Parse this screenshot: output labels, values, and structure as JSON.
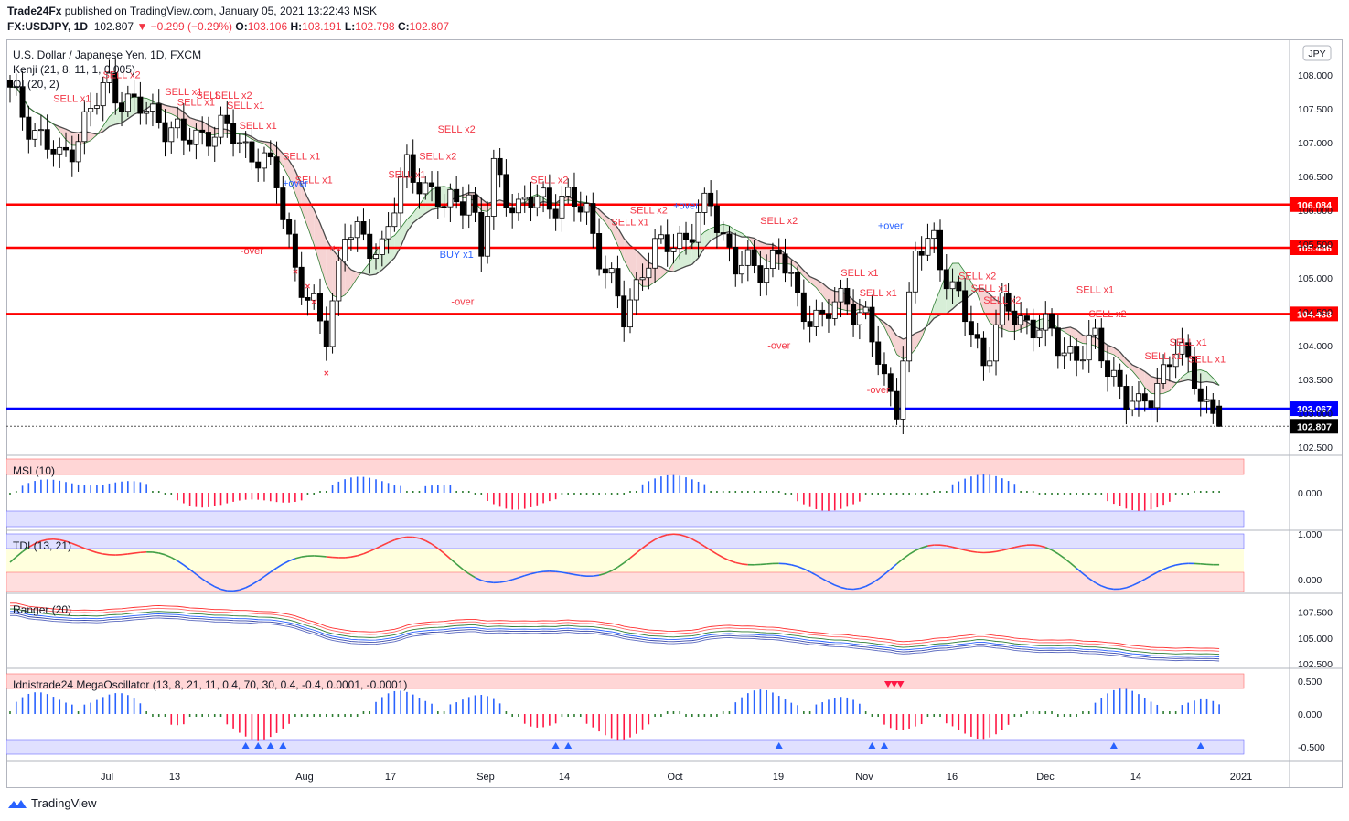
{
  "header": {
    "publisher": "Trade24Fx",
    "published_text": "published on TradingView.com, January 05, 2021 13:22:43 MSK",
    "symbol": "FX:USDJPY, 1D",
    "last": "102.807",
    "change": "▼ −0.299 (−0.29%)",
    "o_label": "O:",
    "o_value": "103.106",
    "h_label": "H:",
    "h_value": "103.191",
    "l_label": "L:",
    "l_value": "102.798",
    "c_label": "C:",
    "c_value": "102.807"
  },
  "legend": {
    "instrument": "U.S. Dollar / Japanese Yen, 1D, FXCM",
    "ind1": "Kenji (21, 8, 11, 1, 0.005)",
    "ind2": "OI (20, 2)"
  },
  "currency_badge": "JPY",
  "panes": {
    "msi": "MSI (10)",
    "tdi": "TDI (13, 21)",
    "ranger": "Ranger (20)",
    "mega": "Idnistrade24 MegaOscillator (13, 8, 21, 11, 0.4, 70, 30, 0.4, -0.4, 0.0001, -0.0001)"
  },
  "footer": {
    "brand": "TradingView"
  },
  "colors": {
    "up": "#ffffff",
    "down": "#000000",
    "red": "#ff0000",
    "blue": "#0000ff",
    "sig": "#f23645",
    "ma": "#4a4a4a"
  },
  "chart_data": {
    "type": "candlestick",
    "price_ticks": [
      "108.000",
      "107.500",
      "107.000",
      "106.500",
      "106.000",
      "105.500",
      "105.000",
      "104.500",
      "104.000",
      "103.500",
      "103.000",
      "102.500"
    ],
    "x_ticks": [
      "Jul",
      "13",
      "Aug",
      "17",
      "Sep",
      "14",
      "Oct",
      "19",
      "Nov",
      "16",
      "Dec",
      "14",
      "2021"
    ],
    "hlines": [
      {
        "value": 106.084,
        "label": "106.084",
        "color": "#ff0000"
      },
      {
        "value": 105.446,
        "label": "105.446",
        "color": "#ff0000"
      },
      {
        "value": 104.468,
        "label": "104.468",
        "color": "#ff0000"
      },
      {
        "value": 103.067,
        "label": "103.067",
        "color": "#0000ff"
      }
    ],
    "last_price": {
      "value": 102.807,
      "label": "102.807"
    },
    "annotations": [
      {
        "text": "SELL x2",
        "idx": 18,
        "price": 107.95
      },
      {
        "text": "SELL x1",
        "idx": 10,
        "price": 107.6
      },
      {
        "text": "SELL x1",
        "idx": 28,
        "price": 107.7
      },
      {
        "text": "SELL",
        "idx": 32,
        "price": 107.65
      },
      {
        "text": "SELL x2",
        "idx": 36,
        "price": 107.65
      },
      {
        "text": "SELL x1",
        "idx": 30,
        "price": 107.55
      },
      {
        "text": "SELL x1",
        "idx": 38,
        "price": 107.5
      },
      {
        "text": "SELL x1",
        "idx": 40,
        "price": 107.2
      },
      {
        "text": "SELL x1",
        "idx": 47,
        "price": 106.75
      },
      {
        "text": "SELL x1",
        "idx": 49,
        "price": 106.4
      },
      {
        "text": "SELL x1",
        "idx": 64,
        "price": 106.48
      },
      {
        "text": "SELL x2",
        "idx": 69,
        "price": 106.75
      },
      {
        "text": "SELL x2",
        "idx": 72,
        "price": 107.15
      },
      {
        "text": "SELL x2",
        "idx": 87,
        "price": 106.4
      },
      {
        "text": "SELL x2",
        "idx": 103,
        "price": 105.95
      },
      {
        "text": "SELL x1",
        "idx": 100,
        "price": 105.78
      },
      {
        "text": "SELL x2",
        "idx": 124,
        "price": 105.8
      },
      {
        "text": "SELL x1",
        "idx": 137,
        "price": 105.03
      },
      {
        "text": "SELL x1",
        "idx": 140,
        "price": 104.73
      },
      {
        "text": "SELL x2",
        "idx": 156,
        "price": 104.98
      },
      {
        "text": "SELL x1",
        "idx": 158,
        "price": 104.8
      },
      {
        "text": "SELL x2",
        "idx": 160,
        "price": 104.62
      },
      {
        "text": "SELL x1",
        "idx": 175,
        "price": 104.78
      },
      {
        "text": "SELL x2",
        "idx": 177,
        "price": 104.42
      },
      {
        "text": "SELL x1",
        "idx": 190,
        "price": 104.0
      },
      {
        "text": "SELL x1",
        "idx": 186,
        "price": 103.8
      },
      {
        "text": "SELL x1",
        "idx": 193,
        "price": 103.75
      },
      {
        "text": "+over",
        "idx": 46,
        "price": 106.35,
        "blue": true
      },
      {
        "text": "+over",
        "idx": 109,
        "price": 106.02,
        "blue": true
      },
      {
        "text": "+over",
        "idx": 142,
        "price": 105.72,
        "blue": true
      },
      {
        "text": "BUY x1",
        "idx": 72,
        "price": 105.3,
        "blue": true
      },
      {
        "text": "-over",
        "idx": 39,
        "price": 105.35
      },
      {
        "text": "-over",
        "idx": 73,
        "price": 104.6
      },
      {
        "text": "-over",
        "idx": 124,
        "price": 103.95
      },
      {
        "text": "-over",
        "idx": 140,
        "price": 103.3
      }
    ],
    "msi_ticks": [
      "0.000"
    ],
    "tdi_ticks": [
      "1.000",
      "0.000"
    ],
    "ranger_ticks": [
      "107.500",
      "105.000",
      "102.500"
    ],
    "mega_ticks": [
      "0.500",
      "0.000",
      "-0.500"
    ]
  }
}
